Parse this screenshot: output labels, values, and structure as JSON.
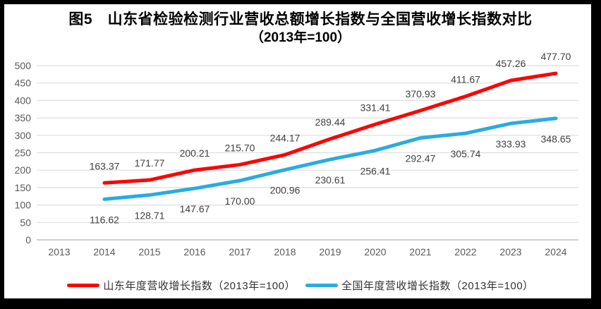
{
  "chart_data": {
    "type": "line",
    "title": "图5　山东省检验检测行业营收总额增长指数与全国营收增长指数对比",
    "subtitle": "（2013年=100）",
    "categories": [
      "2013",
      "2014",
      "2015",
      "2016",
      "2017",
      "2018",
      "2019",
      "2020",
      "2021",
      "2022",
      "2023",
      "2024"
    ],
    "series": [
      {
        "name": "山东年度营收增长指数（2013年=100）",
        "color": "#FE0000",
        "label_position": "above",
        "values": [
          null,
          163.37,
          171.77,
          200.21,
          215.7,
          244.17,
          289.44,
          331.41,
          370.93,
          411.67,
          457.26,
          477.7
        ]
      },
      {
        "name": "全国年度营收增长指数（2013年=100）",
        "color": "#29ABE2",
        "label_position": "below",
        "values": [
          null,
          116.62,
          128.71,
          147.67,
          170.0,
          200.96,
          230.61,
          256.41,
          292.47,
          305.74,
          333.93,
          348.65
        ]
      }
    ],
    "ylim": [
      0,
      500
    ],
    "ytick_step": 50,
    "grid": true,
    "legend_position": "bottom",
    "xlabel": "",
    "ylabel": "",
    "colors": {
      "gridline": "#DEDEDE",
      "axis_line": "#BFBFBF",
      "tick_label": "#595959",
      "data_label": "#404040",
      "title": "#000000"
    }
  }
}
